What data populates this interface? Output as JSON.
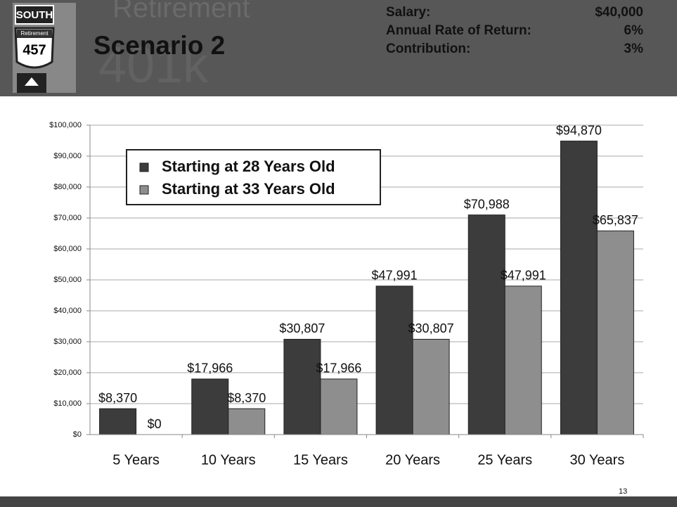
{
  "header": {
    "logo": {
      "top": "SOUTH",
      "middle": "Retirement",
      "number": "457"
    },
    "watermark": [
      "Retirement",
      "401k"
    ],
    "title": "Scenario 2",
    "info": [
      [
        "Salary:",
        "$40,000"
      ],
      [
        "Annual Rate of Return:",
        "6%"
      ],
      [
        "Contribution:",
        "3%"
      ]
    ]
  },
  "chart_data": {
    "type": "bar",
    "categories": [
      "5 Years",
      "10 Years",
      "15 Years",
      "20 Years",
      "25 Years",
      "30 Years"
    ],
    "series": [
      {
        "name": "Starting at 28 Years Old",
        "color": "#3c3c3c",
        "values": [
          8370,
          17966,
          30807,
          47991,
          70988,
          94870
        ],
        "value_labels": [
          "$8,370",
          "$17,966",
          "$30,807",
          "$47,991",
          "$70,988",
          "$94,870"
        ]
      },
      {
        "name": "Starting at 33 Years Old",
        "color": "#8e8e8e",
        "values": [
          0,
          8370,
          17966,
          30807,
          47991,
          65837
        ],
        "value_labels": [
          "$0",
          "$8,370",
          "$17,966",
          "$30,807",
          "$47,991",
          "$65,837"
        ]
      }
    ],
    "ylim": [
      0,
      100000
    ],
    "yticks": [
      {
        "value": 0,
        "label": "$0"
      },
      {
        "value": 10000,
        "label": "$10,000"
      },
      {
        "value": 20000,
        "label": "$20,000"
      },
      {
        "value": 30000,
        "label": "$30,000"
      },
      {
        "value": 40000,
        "label": "$40,000"
      },
      {
        "value": 50000,
        "label": "$50,000"
      },
      {
        "value": 60000,
        "label": "$60,000"
      },
      {
        "value": 70000,
        "label": "$70,000"
      },
      {
        "value": 80000,
        "label": "$80,000"
      },
      {
        "value": 90000,
        "label": "$90,000"
      },
      {
        "value": 100000,
        "label": "$100,000"
      }
    ],
    "grid": true,
    "legend": "upper left"
  },
  "footer": {
    "page": "13"
  }
}
